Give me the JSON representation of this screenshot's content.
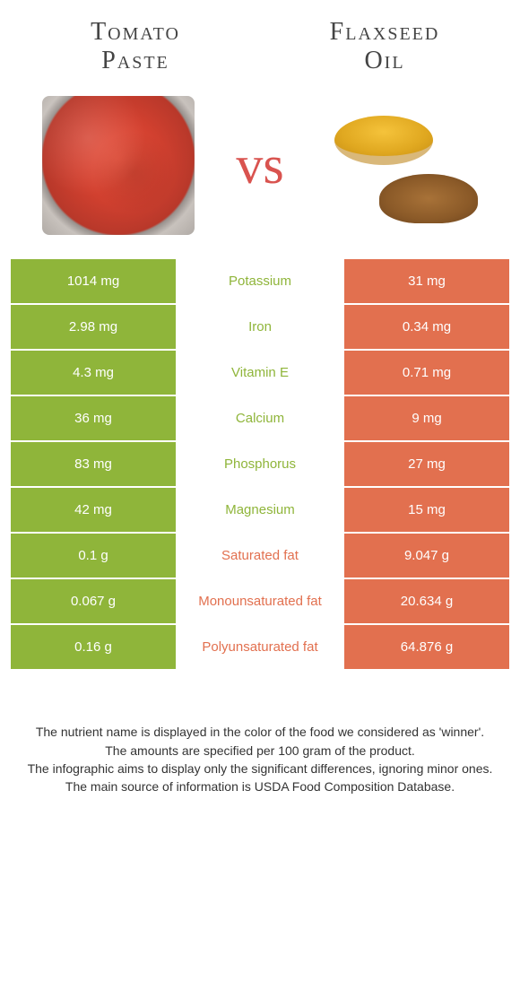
{
  "header": {
    "left_title_line1": "Tomato",
    "left_title_line2": "Paste",
    "right_title_line1": "Flaxseed",
    "right_title_line2": "Oil",
    "vs": "vs"
  },
  "colors": {
    "left": "#8fb53a",
    "right": "#e2704f",
    "mid_bg": "#ffffff",
    "left_text_on_mid": "#8fb53a",
    "right_text_on_mid": "#e2704f"
  },
  "rows": [
    {
      "nutrient": "Potassium",
      "left": "1014 mg",
      "right": "31 mg",
      "winner": "left"
    },
    {
      "nutrient": "Iron",
      "left": "2.98 mg",
      "right": "0.34 mg",
      "winner": "left"
    },
    {
      "nutrient": "Vitamin E",
      "left": "4.3 mg",
      "right": "0.71 mg",
      "winner": "left"
    },
    {
      "nutrient": "Calcium",
      "left": "36 mg",
      "right": "9 mg",
      "winner": "left"
    },
    {
      "nutrient": "Phosphorus",
      "left": "83 mg",
      "right": "27 mg",
      "winner": "left"
    },
    {
      "nutrient": "Magnesium",
      "left": "42 mg",
      "right": "15 mg",
      "winner": "left"
    },
    {
      "nutrient": "Saturated fat",
      "left": "0.1 g",
      "right": "9.047 g",
      "winner": "right"
    },
    {
      "nutrient": "Monounsaturated fat",
      "left": "0.067 g",
      "right": "20.634 g",
      "winner": "right"
    },
    {
      "nutrient": "Polyunsaturated fat",
      "left": "0.16 g",
      "right": "64.876 g",
      "winner": "right"
    }
  ],
  "footer": {
    "line1": "The nutrient name is displayed in the color of the food we considered as 'winner'.",
    "line2": "The amounts are specified per 100 gram of the product.",
    "line3": "The infographic aims to display only the significant differences, ignoring minor ones.",
    "line4": "The main source of information is USDA Food Composition Database."
  }
}
